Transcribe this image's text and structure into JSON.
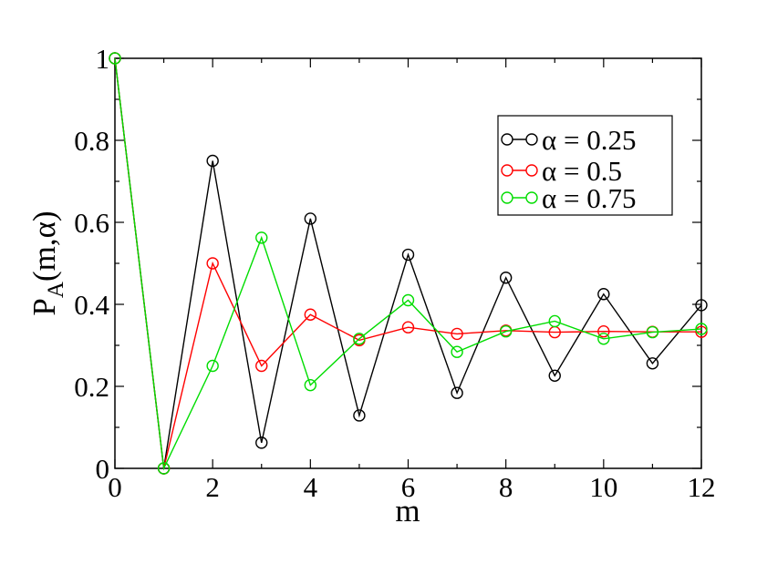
{
  "chart_data": {
    "type": "line",
    "title": "",
    "xlabel": "m",
    "ylabel_main": "P",
    "ylabel_sub": "A",
    "ylabel_rest": "(m,α)",
    "xlim": [
      0,
      12
    ],
    "ylim": [
      0,
      1
    ],
    "x_ticks": [
      0,
      2,
      4,
      6,
      8,
      10,
      12
    ],
    "y_ticks": [
      0,
      0.2,
      0.4,
      0.6,
      0.8,
      1
    ],
    "x_tick_labels": [
      "0",
      "2",
      "4",
      "6",
      "8",
      "10",
      "12"
    ],
    "y_tick_labels": [
      "0",
      "0.2",
      "0.4",
      "0.6",
      "0.8",
      "1"
    ],
    "grid": false,
    "legend_position": "top-right",
    "x": [
      0,
      1,
      2,
      3,
      4,
      5,
      6,
      7,
      8,
      9,
      10,
      11,
      12
    ],
    "series": [
      {
        "name": "α = 0.25",
        "color": "#000000",
        "values": [
          1.0,
          0.0,
          0.75,
          0.0625,
          0.609,
          0.129,
          0.521,
          0.184,
          0.465,
          0.226,
          0.425,
          0.256,
          0.398
        ]
      },
      {
        "name": "α = 0.5",
        "color": "#ff0000",
        "values": [
          1.0,
          0.0,
          0.5,
          0.25,
          0.375,
          0.3125,
          0.344,
          0.328,
          0.336,
          0.332,
          0.334,
          0.333,
          0.333
        ]
      },
      {
        "name": "α = 0.75",
        "color": "#00dd00",
        "values": [
          1.0,
          0.0,
          0.25,
          0.5625,
          0.203,
          0.316,
          0.41,
          0.284,
          0.334,
          0.359,
          0.316,
          0.332,
          0.34
        ]
      }
    ]
  }
}
